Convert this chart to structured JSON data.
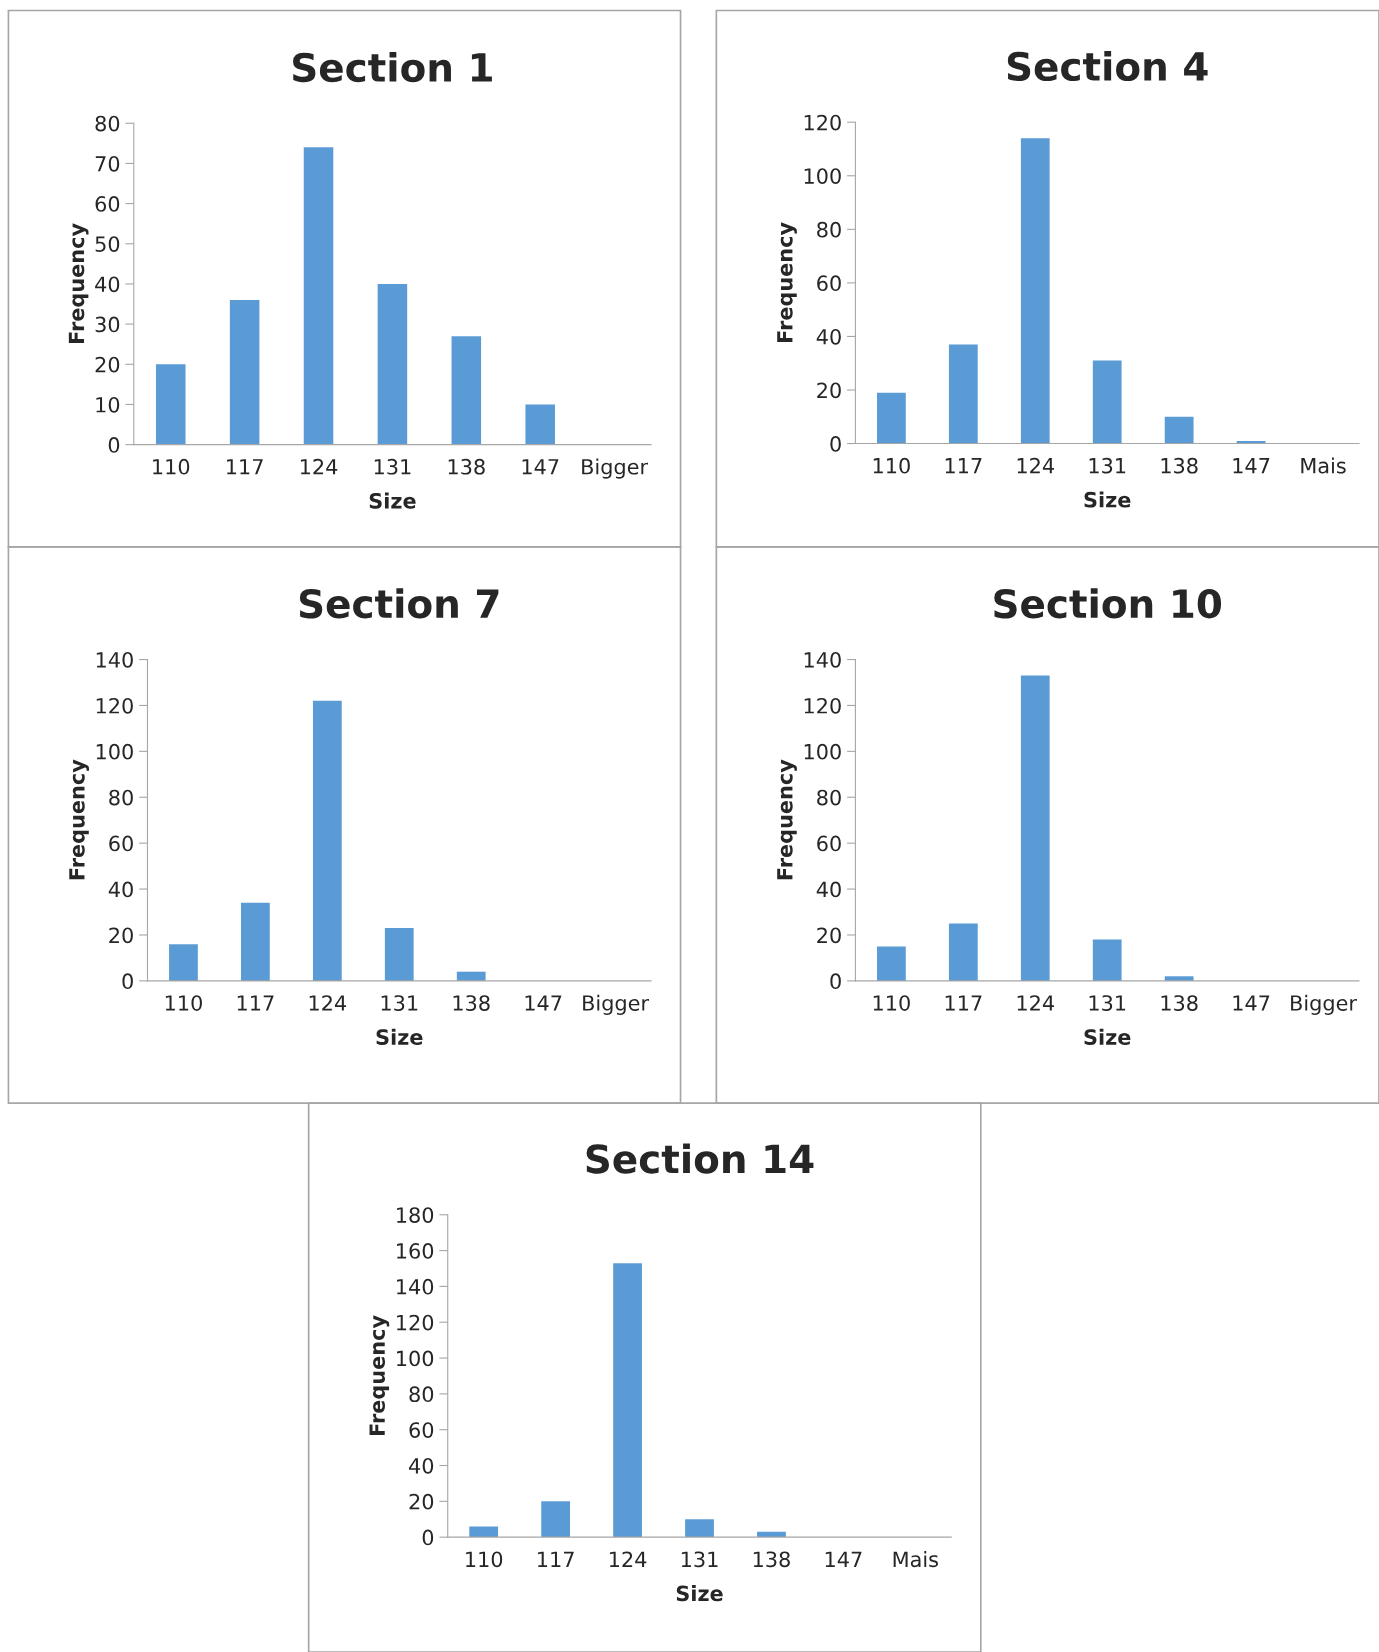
{
  "chart_data": [
    {
      "type": "bar",
      "title": "Section 1",
      "xlabel": "Size",
      "ylabel": "Frequency",
      "categories": [
        "110",
        "117",
        "124",
        "131",
        "138",
        "147",
        "Bigger"
      ],
      "values": [
        20,
        36,
        74,
        40,
        27,
        10,
        0
      ],
      "color": "#5b9bd5",
      "ylim": [
        0,
        80
      ],
      "yticks": [
        0,
        10,
        20,
        30,
        40,
        50,
        60,
        70,
        80
      ],
      "grid": false,
      "legend": false
    },
    {
      "type": "bar",
      "title": "Section 4",
      "xlabel": "Size",
      "ylabel": "Frequency",
      "categories": [
        "110",
        "117",
        "124",
        "131",
        "138",
        "147",
        "Mais"
      ],
      "values": [
        19,
        37,
        114,
        31,
        10,
        1,
        0
      ],
      "color": "#5b9bd5",
      "ylim": [
        0,
        120
      ],
      "yticks": [
        0,
        20,
        40,
        60,
        80,
        100,
        120
      ],
      "grid": false,
      "legend": false
    },
    {
      "type": "bar",
      "title": "Section 7",
      "xlabel": "Size",
      "ylabel": "Frequency",
      "categories": [
        "110",
        "117",
        "124",
        "131",
        "138",
        "147",
        "Bigger"
      ],
      "values": [
        16,
        34,
        122,
        23,
        4,
        0,
        0
      ],
      "color": "#5b9bd5",
      "ylim": [
        0,
        140
      ],
      "yticks": [
        0,
        20,
        40,
        60,
        80,
        100,
        120,
        140
      ],
      "grid": false,
      "legend": false
    },
    {
      "type": "bar",
      "title": "Section 10",
      "xlabel": "Size",
      "ylabel": "Frequency",
      "categories": [
        "110",
        "117",
        "124",
        "131",
        "138",
        "147",
        "Bigger"
      ],
      "values": [
        15,
        25,
        133,
        18,
        2,
        0,
        0
      ],
      "color": "#5b9bd5",
      "ylim": [
        0,
        140
      ],
      "yticks": [
        0,
        20,
        40,
        60,
        80,
        100,
        120,
        140
      ],
      "grid": false,
      "legend": false
    },
    {
      "type": "bar",
      "title": "Section 14",
      "xlabel": "Size",
      "ylabel": "Frequency",
      "categories": [
        "110",
        "117",
        "124",
        "131",
        "138",
        "147",
        "Mais"
      ],
      "values": [
        6,
        20,
        153,
        10,
        3,
        0,
        0
      ],
      "color": "#5b9bd5",
      "ylim": [
        0,
        180
      ],
      "yticks": [
        0,
        20,
        40,
        60,
        80,
        100,
        120,
        140,
        160,
        180
      ],
      "grid": false,
      "legend": false
    }
  ]
}
